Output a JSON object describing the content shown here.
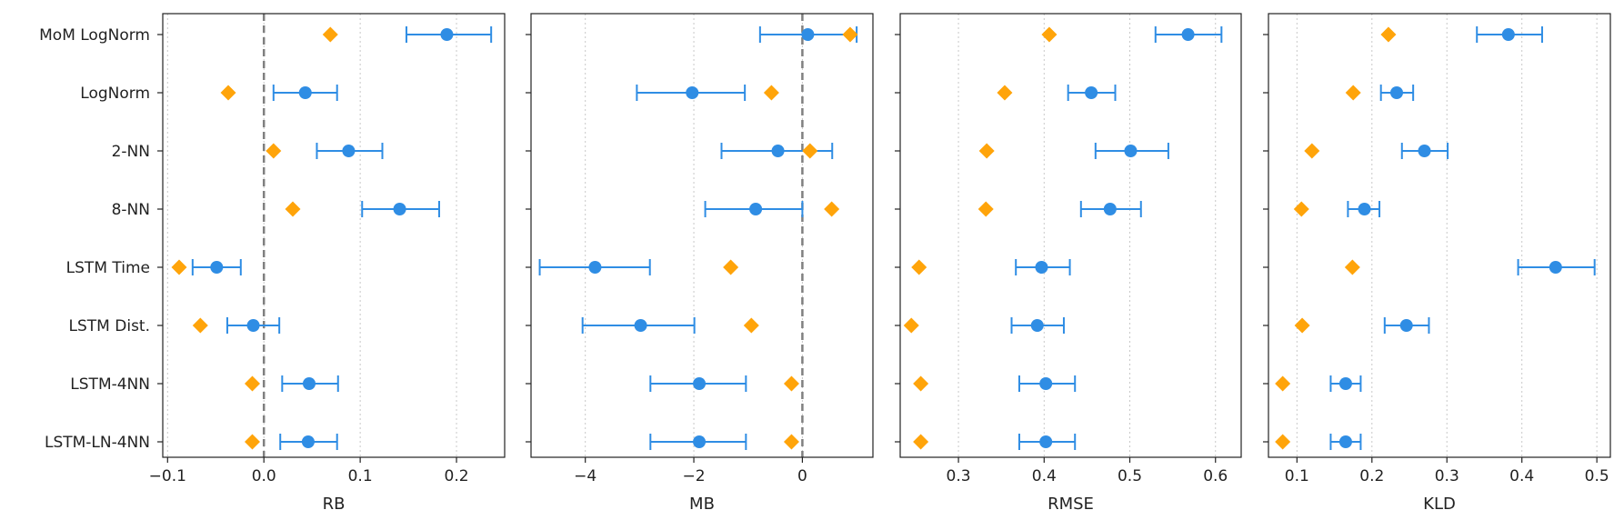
{
  "colors": {
    "point": "#2f8de4",
    "baseline": "#ffa40a",
    "axis": "#222222",
    "grid": "#c8c8c8",
    "zero_line": "#808080"
  },
  "chart_data": [
    {
      "type": "scatter",
      "xlabel": "RB",
      "xlim": [
        -0.105,
        0.25
      ],
      "xticks": [
        -0.1,
        0.0,
        0.1,
        0.2
      ],
      "xtick_labels": [
        "−0.1",
        "0.0",
        "0.1",
        "0.2"
      ],
      "zero_line": 0.0,
      "categories": [
        "MoM LogNorm",
        "LogNorm",
        "2-NN",
        "8-NN",
        "LSTM Time",
        "LSTM Dist.",
        "LSTM-4NN",
        "LSTM-LN-4NN"
      ],
      "estimate": [
        0.19,
        0.043,
        0.088,
        0.141,
        -0.049,
        -0.011,
        0.047,
        0.046
      ],
      "ci_low": [
        0.148,
        0.01,
        0.055,
        0.102,
        -0.074,
        -0.038,
        0.019,
        0.017
      ],
      "ci_high": [
        0.236,
        0.076,
        0.123,
        0.182,
        -0.024,
        0.016,
        0.077,
        0.076
      ],
      "baseline": [
        0.069,
        -0.037,
        0.01,
        0.03,
        -0.088,
        -0.066,
        -0.012,
        -0.012
      ]
    },
    {
      "type": "scatter",
      "xlabel": "MB",
      "xlim": [
        -5.0,
        1.3
      ],
      "xticks": [
        -4,
        -2,
        0
      ],
      "xtick_labels": [
        "−4",
        "−2",
        "0"
      ],
      "zero_line": 0.0,
      "categories": [
        "MoM LogNorm",
        "LogNorm",
        "2-NN",
        "8-NN",
        "LSTM Time",
        "LSTM Dist.",
        "LSTM-4NN",
        "LSTM-LN-4NN"
      ],
      "estimate": [
        0.1,
        -2.03,
        -0.45,
        -0.86,
        -3.82,
        -2.98,
        -1.9,
        -1.9
      ],
      "ci_low": [
        -0.78,
        -3.05,
        -1.49,
        -1.79,
        -4.84,
        -4.05,
        -2.8,
        -2.8
      ],
      "ci_high": [
        1.0,
        -1.06,
        0.55,
        0.0,
        -2.81,
        -1.99,
        -1.04,
        -1.04
      ],
      "baseline": [
        0.88,
        -0.57,
        0.14,
        0.54,
        -1.32,
        -0.94,
        -0.2,
        -0.2
      ]
    },
    {
      "type": "scatter",
      "xlabel": "RMSE",
      "xlim": [
        0.232,
        0.63
      ],
      "xticks": [
        0.3,
        0.4,
        0.5,
        0.6
      ],
      "xtick_labels": [
        "0.3",
        "0.4",
        "0.5",
        "0.6"
      ],
      "categories": [
        "MoM LogNorm",
        "LogNorm",
        "2-NN",
        "8-NN",
        "LSTM Time",
        "LSTM Dist.",
        "LSTM-4NN",
        "LSTM-LN-4NN"
      ],
      "estimate": [
        0.568,
        0.455,
        0.501,
        0.477,
        0.397,
        0.392,
        0.402,
        0.402
      ],
      "ci_low": [
        0.53,
        0.428,
        0.46,
        0.443,
        0.367,
        0.362,
        0.371,
        0.371
      ],
      "ci_high": [
        0.607,
        0.483,
        0.545,
        0.513,
        0.43,
        0.423,
        0.436,
        0.436
      ],
      "baseline": [
        0.406,
        0.354,
        0.333,
        0.332,
        0.254,
        0.245,
        0.256,
        0.256
      ]
    },
    {
      "type": "scatter",
      "xlabel": "KLD",
      "xlim": [
        0.062,
        0.518
      ],
      "xticks": [
        0.1,
        0.2,
        0.3,
        0.4,
        0.5
      ],
      "xtick_labels": [
        "0.1",
        "0.2",
        "0.3",
        "0.4",
        "0.5"
      ],
      "categories": [
        "MoM LogNorm",
        "LogNorm",
        "2-NN",
        "8-NN",
        "LSTM Time",
        "LSTM Dist.",
        "LSTM-4NN",
        "LSTM-LN-4NN"
      ],
      "estimate": [
        0.382,
        0.233,
        0.27,
        0.19,
        0.445,
        0.246,
        0.165,
        0.165
      ],
      "ci_low": [
        0.34,
        0.212,
        0.24,
        0.168,
        0.395,
        0.217,
        0.145,
        0.145
      ],
      "ci_high": [
        0.427,
        0.255,
        0.301,
        0.21,
        0.497,
        0.276,
        0.185,
        0.185
      ],
      "baseline": [
        0.222,
        0.175,
        0.12,
        0.106,
        0.174,
        0.107,
        0.081,
        0.081
      ]
    }
  ]
}
